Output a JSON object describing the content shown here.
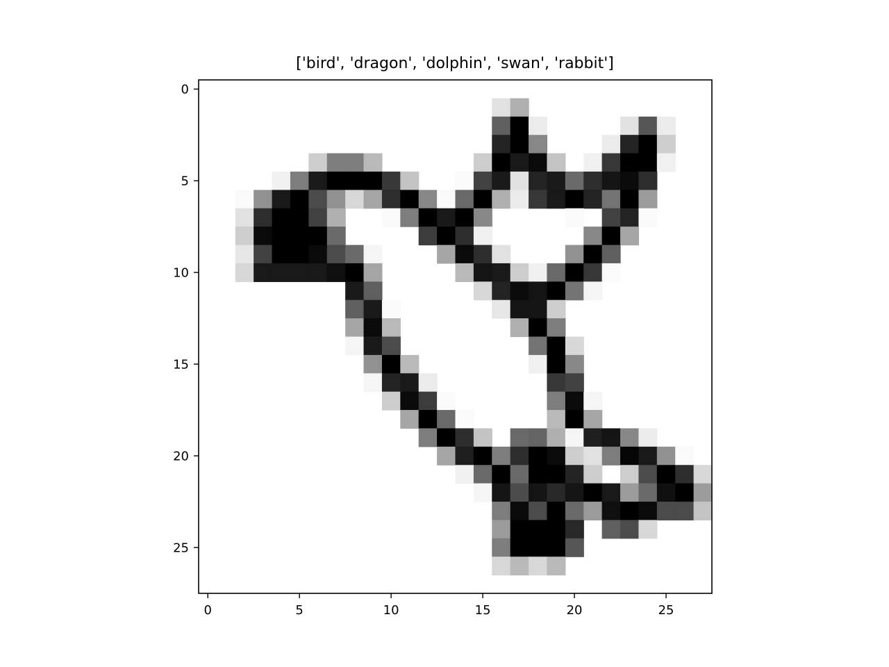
{
  "chart_data": {
    "type": "heatmap",
    "title": "['bird', 'dragon', 'dolphin', 'swan', 'rabbit']",
    "xlabel": "",
    "ylabel": "",
    "xlim": [
      -0.5,
      27.5
    ],
    "ylim": [
      27.5,
      -0.5
    ],
    "xticks": [
      0,
      5,
      10,
      15,
      20,
      25
    ],
    "yticks": [
      0,
      5,
      10,
      15,
      20,
      25
    ],
    "colormap": "gray_r",
    "value_range": [
      0,
      255
    ],
    "grid": false,
    "pixels": [
      [
        0,
        0,
        0,
        0,
        0,
        0,
        0,
        0,
        0,
        0,
        0,
        0,
        0,
        0,
        0,
        0,
        0,
        0,
        0,
        0,
        0,
        0,
        0,
        0,
        0,
        0,
        0,
        0
      ],
      [
        0,
        0,
        0,
        0,
        0,
        0,
        0,
        0,
        0,
        0,
        0,
        0,
        0,
        0,
        0,
        0,
        30,
        80,
        0,
        0,
        0,
        0,
        0,
        0,
        0,
        0,
        0,
        0
      ],
      [
        0,
        0,
        0,
        0,
        0,
        0,
        0,
        0,
        0,
        0,
        0,
        0,
        0,
        0,
        0,
        0,
        160,
        255,
        20,
        0,
        0,
        0,
        0,
        30,
        170,
        20,
        0,
        0
      ],
      [
        0,
        0,
        0,
        0,
        0,
        0,
        0,
        0,
        0,
        0,
        0,
        0,
        0,
        0,
        0,
        0,
        220,
        255,
        120,
        0,
        0,
        0,
        20,
        220,
        255,
        50,
        0,
        0
      ],
      [
        0,
        0,
        0,
        0,
        0,
        0,
        50,
        130,
        130,
        70,
        0,
        0,
        0,
        0,
        0,
        50,
        255,
        230,
        245,
        60,
        0,
        15,
        200,
        255,
        255,
        15,
        0,
        0
      ],
      [
        0,
        0,
        0,
        0,
        15,
        130,
        230,
        255,
        255,
        255,
        200,
        60,
        0,
        0,
        5,
        190,
        230,
        30,
        220,
        230,
        150,
        210,
        235,
        245,
        210,
        0,
        0,
        0
      ],
      [
        0,
        0,
        5,
        110,
        230,
        255,
        180,
        110,
        40,
        90,
        210,
        255,
        120,
        5,
        150,
        255,
        80,
        20,
        200,
        230,
        255,
        220,
        140,
        255,
        100,
        0,
        0,
        0
      ],
      [
        0,
        0,
        30,
        210,
        255,
        255,
        190,
        80,
        0,
        0,
        5,
        130,
        255,
        230,
        255,
        120,
        0,
        0,
        0,
        0,
        5,
        0,
        190,
        220,
        5,
        0,
        0,
        0
      ],
      [
        0,
        0,
        50,
        245,
        255,
        255,
        255,
        150,
        0,
        0,
        0,
        0,
        195,
        255,
        210,
        15,
        0,
        0,
        0,
        0,
        0,
        120,
        255,
        90,
        0,
        0,
        0,
        0
      ],
      [
        0,
        0,
        25,
        190,
        255,
        255,
        245,
        180,
        150,
        10,
        0,
        0,
        0,
        90,
        245,
        210,
        30,
        0,
        0,
        0,
        110,
        255,
        160,
        0,
        0,
        0,
        0,
        0
      ],
      [
        0,
        0,
        40,
        230,
        230,
        230,
        230,
        240,
        255,
        90,
        0,
        0,
        0,
        0,
        70,
        235,
        230,
        50,
        15,
        150,
        255,
        200,
        5,
        0,
        0,
        0,
        0,
        0
      ],
      [
        0,
        0,
        0,
        0,
        0,
        0,
        0,
        0,
        230,
        160,
        0,
        0,
        0,
        0,
        0,
        40,
        220,
        245,
        235,
        255,
        140,
        10,
        0,
        0,
        0,
        0,
        0,
        0
      ],
      [
        0,
        0,
        0,
        0,
        0,
        0,
        0,
        0,
        160,
        230,
        5,
        0,
        0,
        0,
        0,
        0,
        25,
        235,
        235,
        50,
        0,
        0,
        0,
        0,
        0,
        0,
        0,
        0
      ],
      [
        0,
        0,
        0,
        0,
        0,
        0,
        0,
        0,
        90,
        245,
        70,
        0,
        0,
        0,
        0,
        0,
        0,
        80,
        255,
        130,
        0,
        0,
        0,
        0,
        0,
        0,
        0,
        0
      ],
      [
        0,
        0,
        0,
        0,
        0,
        0,
        0,
        0,
        10,
        230,
        180,
        0,
        0,
        0,
        0,
        0,
        0,
        0,
        140,
        255,
        40,
        0,
        0,
        0,
        0,
        0,
        0,
        0
      ],
      [
        0,
        0,
        0,
        0,
        0,
        0,
        0,
        0,
        0,
        110,
        255,
        70,
        0,
        0,
        0,
        0,
        0,
        0,
        15,
        255,
        120,
        0,
        0,
        0,
        0,
        0,
        0,
        0
      ],
      [
        0,
        0,
        0,
        0,
        0,
        0,
        0,
        0,
        0,
        10,
        220,
        230,
        20,
        0,
        0,
        0,
        0,
        0,
        0,
        200,
        190,
        0,
        0,
        0,
        0,
        0,
        0,
        0
      ],
      [
        0,
        0,
        0,
        0,
        0,
        0,
        0,
        0,
        0,
        0,
        50,
        245,
        195,
        5,
        0,
        0,
        0,
        0,
        0,
        130,
        245,
        10,
        0,
        0,
        0,
        0,
        0,
        0
      ],
      [
        0,
        0,
        0,
        0,
        0,
        0,
        0,
        0,
        0,
        0,
        0,
        90,
        255,
        150,
        5,
        0,
        0,
        0,
        0,
        70,
        255,
        90,
        0,
        0,
        0,
        0,
        0,
        0
      ],
      [
        0,
        0,
        0,
        0,
        0,
        0,
        0,
        0,
        0,
        0,
        0,
        0,
        130,
        255,
        210,
        60,
        0,
        150,
        155,
        80,
        10,
        225,
        235,
        120,
        20,
        0,
        0,
        0
      ],
      [
        0,
        0,
        0,
        0,
        0,
        0,
        0,
        0,
        0,
        0,
        0,
        0,
        0,
        90,
        225,
        255,
        130,
        210,
        255,
        245,
        50,
        30,
        130,
        250,
        230,
        110,
        5,
        0
      ],
      [
        0,
        0,
        0,
        0,
        0,
        0,
        0,
        0,
        0,
        0,
        0,
        0,
        0,
        0,
        15,
        150,
        255,
        150,
        255,
        255,
        220,
        50,
        0,
        50,
        180,
        255,
        210,
        40
      ],
      [
        0,
        0,
        0,
        0,
        0,
        0,
        0,
        0,
        0,
        0,
        0,
        0,
        0,
        0,
        0,
        10,
        235,
        180,
        235,
        215,
        235,
        255,
        230,
        100,
        150,
        240,
        255,
        100
      ],
      [
        0,
        0,
        0,
        0,
        0,
        0,
        0,
        0,
        0,
        0,
        0,
        0,
        0,
        0,
        0,
        0,
        130,
        245,
        180,
        255,
        150,
        100,
        240,
        255,
        245,
        180,
        180,
        60
      ],
      [
        0,
        0,
        0,
        0,
        0,
        0,
        0,
        0,
        0,
        0,
        0,
        0,
        0,
        0,
        0,
        0,
        100,
        255,
        255,
        255,
        215,
        0,
        160,
        180,
        40,
        0,
        0,
        0
      ],
      [
        0,
        0,
        0,
        0,
        0,
        0,
        0,
        0,
        0,
        0,
        0,
        0,
        0,
        0,
        0,
        0,
        130,
        255,
        255,
        255,
        170,
        0,
        0,
        0,
        0,
        0,
        0,
        0
      ],
      [
        0,
        0,
        0,
        0,
        0,
        0,
        0,
        0,
        0,
        0,
        0,
        0,
        0,
        0,
        0,
        0,
        40,
        70,
        40,
        70,
        0,
        0,
        0,
        0,
        0,
        0,
        0,
        0
      ],
      [
        0,
        0,
        0,
        0,
        0,
        0,
        0,
        0,
        0,
        0,
        0,
        0,
        0,
        0,
        0,
        0,
        0,
        0,
        0,
        0,
        0,
        0,
        0,
        0,
        0,
        0,
        0,
        0
      ]
    ]
  }
}
